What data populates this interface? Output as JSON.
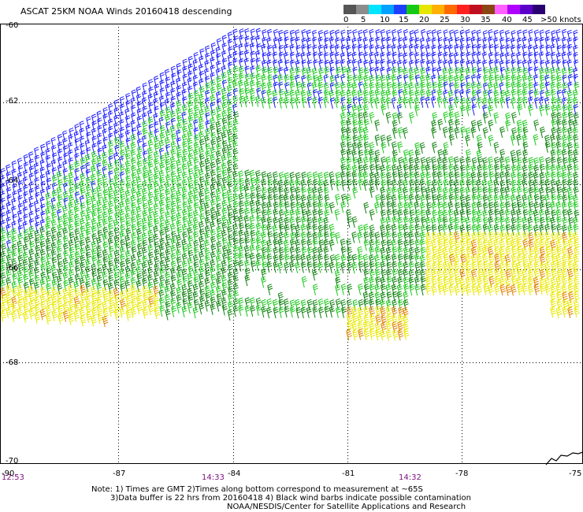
{
  "title": "ASCAT 25KM NOAA Winds 20160418 descending",
  "colorbar": {
    "colors": [
      "#555555",
      "#8c8c8c",
      "#00e5ff",
      "#00a2ff",
      "#1f3fff",
      "#16c916",
      "#e6e600",
      "#ffb000",
      "#ff6a00",
      "#ff2020",
      "#c01020",
      "#8b4513",
      "#ff60ff",
      "#b000ff",
      "#5a00c8",
      "#2a0070"
    ],
    "labels": [
      "0",
      "5",
      "10",
      "15",
      "20",
      "25",
      "30",
      "35",
      "40",
      "45",
      ">50 knots"
    ]
  },
  "latitudes": [
    "-60",
    "-62",
    "-64",
    "-66",
    "-68",
    "-70"
  ],
  "longitudes": [
    "-87",
    "-84",
    "-81",
    "-78",
    "-75"
  ],
  "start_lon": "-90",
  "times": [
    "12:53",
    "14:33",
    "14:32"
  ],
  "notes": {
    "line1": "Note: 1) Times are GMT 2)Times along bottom correspond to measurement at ~65S",
    "line2": "3)Data buffer is 22 hrs from 20160418 4) Black wind barbs indicate possible contamination",
    "line3": "NOAA/NESDIS/Center for Satellite Applications and Research"
  },
  "wind_colors": {
    "blue": "#1a1aff",
    "bright_green": "#18c818",
    "dark_green": "#0b7f0b",
    "yellow": "#e8e800",
    "orange": "#e08000",
    "coast": "#000000"
  }
}
